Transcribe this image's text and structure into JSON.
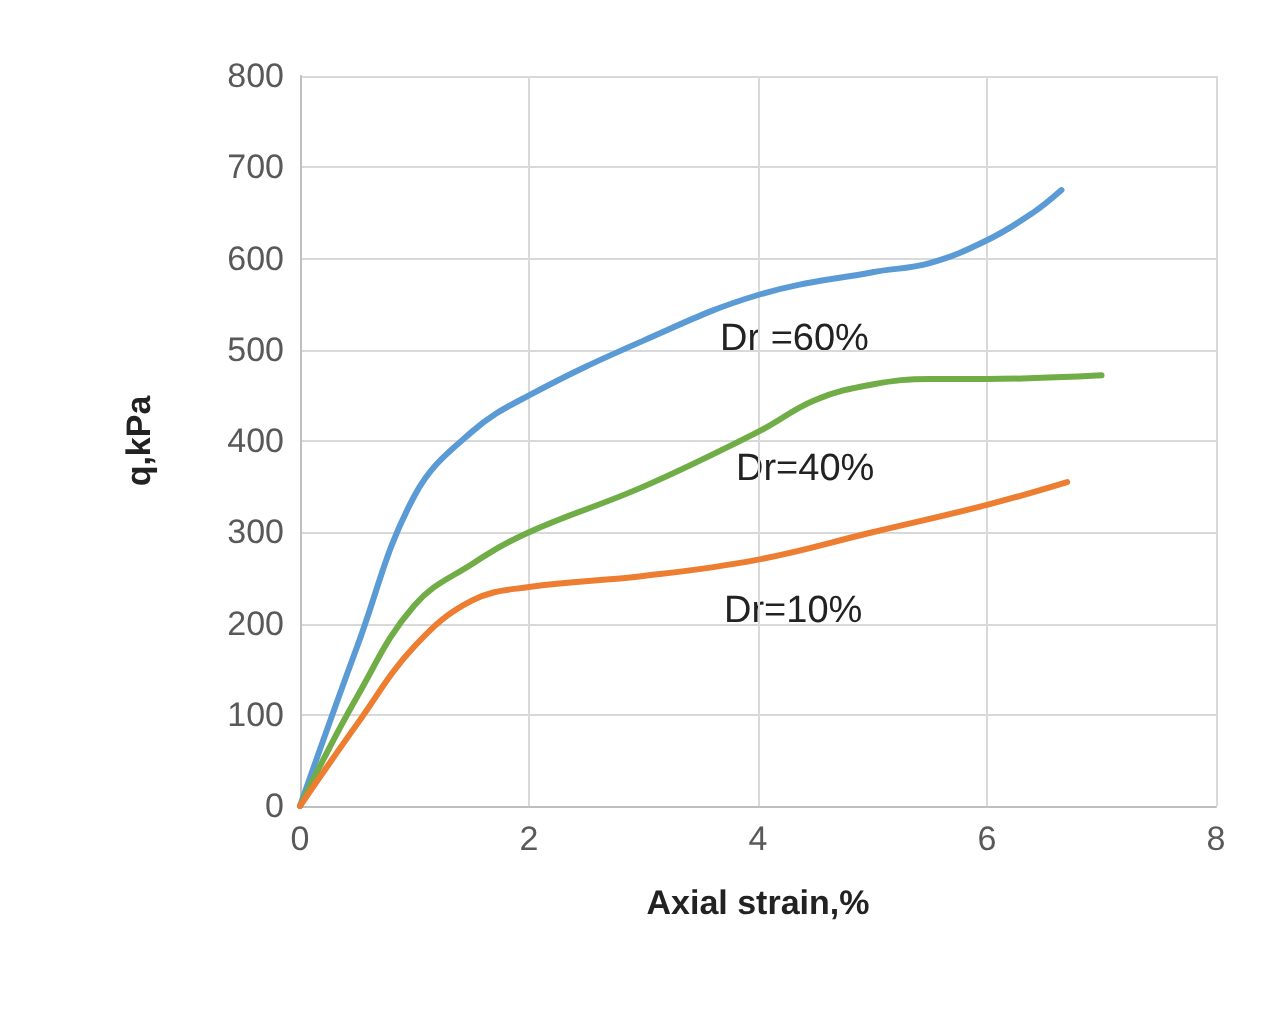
{
  "chart_data": {
    "type": "line",
    "xlabel": "Axial strain,%",
    "ylabel": "q,kPa",
    "xlim": [
      0,
      8
    ],
    "xticks": [
      0,
      2,
      4,
      6,
      8
    ],
    "ylim": [
      0,
      800
    ],
    "yticks": [
      0,
      100,
      200,
      300,
      400,
      500,
      600,
      700,
      800
    ],
    "grid": true,
    "marker": "none",
    "line_style": "solid",
    "series": [
      {
        "name": "Dr =60%",
        "color": "#5b9bd5",
        "x": [
          0,
          0.5,
          1,
          1.5,
          2,
          3,
          4,
          5,
          5.5,
          6,
          6.4,
          6.65
        ],
        "values": [
          0,
          175,
          340,
          410,
          450,
          510,
          560,
          585,
          595,
          620,
          650,
          675
        ]
      },
      {
        "name": "Dr=40%",
        "color": "#70ad47",
        "x": [
          0,
          0.5,
          1,
          1.5,
          2,
          3,
          4,
          4.5,
          5,
          5.5,
          6,
          7
        ],
        "values": [
          0,
          120,
          220,
          265,
          300,
          350,
          410,
          445,
          462,
          468,
          468,
          472
        ]
      },
      {
        "name": "Dr=10%",
        "color": "#ed7d31",
        "x": [
          0,
          0.5,
          1,
          1.5,
          2,
          3,
          4,
          5,
          6,
          6.7
        ],
        "values": [
          0,
          90,
          175,
          225,
          240,
          252,
          270,
          300,
          330,
          355
        ]
      }
    ]
  }
}
